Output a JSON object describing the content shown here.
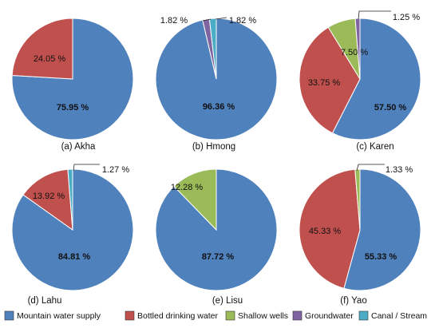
{
  "colors": {
    "mountain": "#4F81BD",
    "bottled": "#C0504D",
    "shallow": "#9BBB59",
    "ground": "#8064A2",
    "canal": "#4BACC6"
  },
  "legend": [
    {
      "key": "mountain",
      "label": "Mountain water supply"
    },
    {
      "key": "bottled",
      "label": "Bottled drinking water"
    },
    {
      "key": "shallow",
      "label": "Shallow wells"
    },
    {
      "key": "ground",
      "label": "Groundwater"
    },
    {
      "key": "canal",
      "label": "Canal / Stream"
    }
  ],
  "chart_data": [
    {
      "type": "pie",
      "title": "(a) Akha",
      "slices": [
        {
          "category": "mountain",
          "value": 75.95,
          "label": "75.95 %"
        },
        {
          "category": "bottled",
          "value": 24.05,
          "label": "24.05 %"
        }
      ]
    },
    {
      "type": "pie",
      "title": "(b) Hmong",
      "slices": [
        {
          "category": "mountain",
          "value": 96.36,
          "label": "96.36 %"
        },
        {
          "category": "ground",
          "value": 1.82,
          "label": "1.82 %"
        },
        {
          "category": "canal",
          "value": 1.82,
          "label": "1.82 %"
        }
      ]
    },
    {
      "type": "pie",
      "title": "(c) Karen",
      "slices": [
        {
          "category": "mountain",
          "value": 57.5,
          "label": "57.50 %"
        },
        {
          "category": "bottled",
          "value": 33.75,
          "label": "33.75 %"
        },
        {
          "category": "shallow",
          "value": 7.5,
          "label": "7.50 %"
        },
        {
          "category": "ground",
          "value": 1.25,
          "label": "1.25 %"
        }
      ]
    },
    {
      "type": "pie",
      "title": "(d) Lahu",
      "slices": [
        {
          "category": "mountain",
          "value": 84.81,
          "label": "84.81 %"
        },
        {
          "category": "bottled",
          "value": 13.92,
          "label": "13.92 %"
        },
        {
          "category": "canal",
          "value": 1.27,
          "label": "1.27 %"
        }
      ]
    },
    {
      "type": "pie",
      "title": "(e) Lisu",
      "slices": [
        {
          "category": "mountain",
          "value": 87.72,
          "label": "87.72 %"
        },
        {
          "category": "shallow",
          "value": 12.28,
          "label": "12.28 %"
        }
      ]
    },
    {
      "type": "pie",
      "title": "(f) Yao",
      "slices": [
        {
          "category": "mountain",
          "value": 55.33,
          "label": "55.33 %"
        },
        {
          "category": "bottled",
          "value": 45.33,
          "label": "45.33 %"
        },
        {
          "category": "shallow",
          "value": 1.33,
          "label": "1.33 %"
        }
      ]
    }
  ]
}
